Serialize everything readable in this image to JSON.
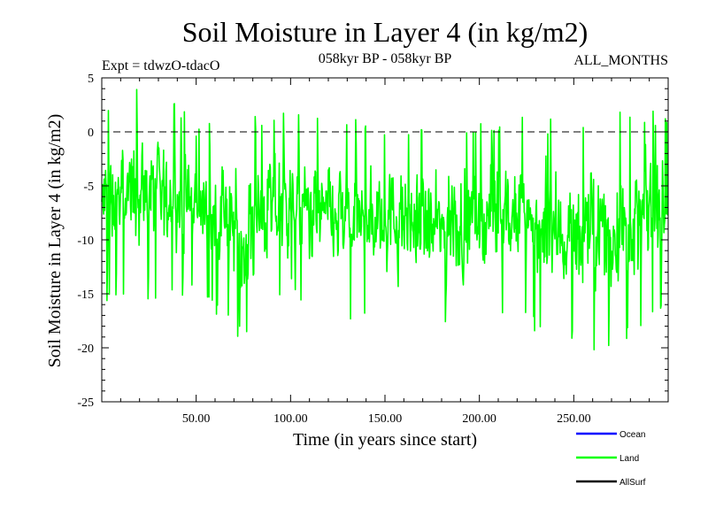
{
  "chart_data": {
    "type": "line",
    "title": "Soil Moisture in Layer 4 (in kg/m2)",
    "subtitle_left": "Expt = tdwzO-tdacO",
    "subtitle_center": "058kyr BP - 058kyr BP",
    "subtitle_right": "ALL_MONTHS",
    "xlabel": "Time (in years since start)",
    "ylabel": "Soil Moisture in Layer 4 (in kg/m2)",
    "xlim": [
      0,
      300
    ],
    "ylim": [
      -25,
      5
    ],
    "x_ticks": [
      50,
      100,
      150,
      200,
      250
    ],
    "x_tick_labels": [
      "50.00",
      "100.00",
      "150.00",
      "200.00",
      "250.00"
    ],
    "y_ticks": [
      5,
      0,
      -5,
      -10,
      -15,
      -20,
      -25
    ],
    "y_tick_labels": [
      "5",
      "0",
      "-5",
      "-10",
      "-15",
      "-20",
      "-25"
    ],
    "reference_line": 0,
    "legend": [
      {
        "name": "Ocean",
        "color": "#0000ff"
      },
      {
        "name": "Land",
        "color": "#00ff00"
      },
      {
        "name": "AllSurf",
        "color": "#000000"
      }
    ],
    "series": [
      {
        "name": "Land",
        "color": "#00ff00",
        "x_start": 0,
        "x_step": 0.25,
        "points": 1200,
        "mean": -7,
        "min": -21,
        "max": 4.7,
        "description_note": "monthly noisy signal, approx. envelope per 25-year segment",
        "envelope_x": [
          0,
          25,
          50,
          75,
          100,
          125,
          150,
          175,
          200,
          225,
          250,
          275,
          300
        ],
        "envelope_low": [
          -16,
          -16,
          -15,
          -19.5,
          -15,
          -18,
          -17,
          -19,
          -17,
          -18,
          -20.5,
          -20,
          -16
        ],
        "envelope_high": [
          2.5,
          4.7,
          1,
          1.5,
          2,
          1.5,
          1,
          0.5,
          1,
          1.5,
          1,
          2,
          2
        ]
      }
    ]
  }
}
